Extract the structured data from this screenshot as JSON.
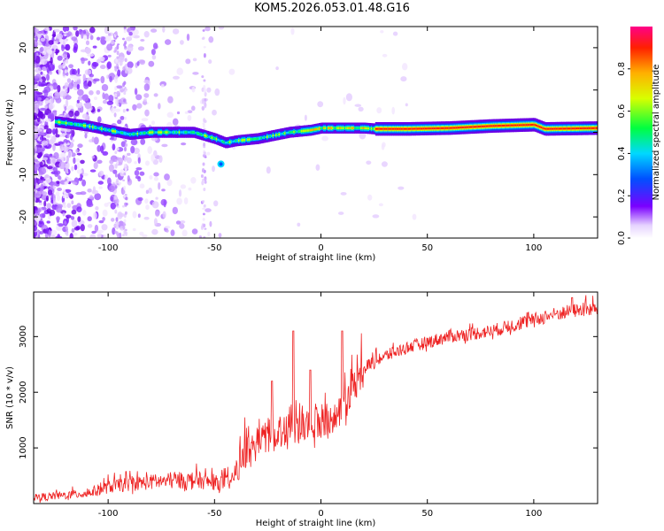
{
  "title": "KOM5.2026.053.01.48.G16",
  "chart_data": [
    {
      "type": "heatmap",
      "name": "spectrogram",
      "xlabel": "Height of straight line (km)",
      "ylabel": "Frequency (Hz)",
      "xlim": [
        -135,
        130
      ],
      "ylim": [
        -25,
        25
      ],
      "xticks": [
        -100,
        -50,
        0,
        50,
        100
      ],
      "yticks": [
        -20,
        -10,
        0,
        10,
        20
      ],
      "ridge": [
        {
          "x": -125,
          "y": 2.5
        },
        {
          "x": -110,
          "y": 1.5
        },
        {
          "x": -100,
          "y": 0.5
        },
        {
          "x": -90,
          "y": -0.5
        },
        {
          "x": -80,
          "y": 0
        },
        {
          "x": -70,
          "y": 0
        },
        {
          "x": -60,
          "y": 0
        },
        {
          "x": -50,
          "y": -1.5
        },
        {
          "x": -45,
          "y": -2.5
        },
        {
          "x": -40,
          "y": -2
        },
        {
          "x": -30,
          "y": -1.5
        },
        {
          "x": -25,
          "y": -1
        },
        {
          "x": -15,
          "y": 0
        },
        {
          "x": -5,
          "y": 0.5
        },
        {
          "x": 0,
          "y": 1
        },
        {
          "x": 10,
          "y": 1
        },
        {
          "x": 20,
          "y": 1
        },
        {
          "x": 25,
          "y": 0.8
        },
        {
          "x": 40,
          "y": 0.8
        },
        {
          "x": 60,
          "y": 1
        },
        {
          "x": 80,
          "y": 1.5
        },
        {
          "x": 100,
          "y": 1.8
        },
        {
          "x": 105,
          "y": 0.8
        },
        {
          "x": 130,
          "y": 1
        }
      ],
      "colorbar": {
        "label": "Normalized spectral amplitude",
        "range": [
          0.0,
          1.0
        ],
        "ticks": [
          "0.0",
          "0.2",
          "0.4",
          "0.6",
          "0.8"
        ],
        "tick_values": [
          0,
          0.2,
          0.4,
          0.6,
          0.8
        ]
      }
    },
    {
      "type": "line",
      "name": "snr",
      "xlabel": "Height of straight line (km)",
      "ylabel": "SNR (10 * v/v)",
      "xlim": [
        -135,
        130
      ],
      "ylim": [
        0,
        3800
      ],
      "xticks": [
        -100,
        -50,
        0,
        50,
        100
      ],
      "yticks": [
        1000,
        2000,
        3000
      ],
      "series": [
        {
          "name": "SNR",
          "color": "#ee2222",
          "trend": [
            {
              "x": -135,
              "y": 80
            },
            {
              "x": -120,
              "y": 120
            },
            {
              "x": -110,
              "y": 150
            },
            {
              "x": -100,
              "y": 250
            },
            {
              "x": -90,
              "y": 300
            },
            {
              "x": -80,
              "y": 330
            },
            {
              "x": -70,
              "y": 350
            },
            {
              "x": -60,
              "y": 360
            },
            {
              "x": -50,
              "y": 320
            },
            {
              "x": -42,
              "y": 330
            },
            {
              "x": -38,
              "y": 700
            },
            {
              "x": -30,
              "y": 1000
            },
            {
              "x": -20,
              "y": 1200
            },
            {
              "x": -10,
              "y": 1300
            },
            {
              "x": 0,
              "y": 1300
            },
            {
              "x": 8,
              "y": 1500
            },
            {
              "x": 15,
              "y": 2000
            },
            {
              "x": 22,
              "y": 2450
            },
            {
              "x": 30,
              "y": 2600
            },
            {
              "x": 40,
              "y": 2750
            },
            {
              "x": 50,
              "y": 2850
            },
            {
              "x": 60,
              "y": 2950
            },
            {
              "x": 70,
              "y": 3000
            },
            {
              "x": 80,
              "y": 3050
            },
            {
              "x": 90,
              "y": 3150
            },
            {
              "x": 100,
              "y": 3250
            },
            {
              "x": 110,
              "y": 3350
            },
            {
              "x": 120,
              "y": 3420
            },
            {
              "x": 130,
              "y": 3450
            }
          ],
          "peaks": [
            {
              "x": -13,
              "y": 3100
            },
            {
              "x": -5,
              "y": 2400
            },
            {
              "x": 10,
              "y": 3100
            },
            {
              "x": 118,
              "y": 3700
            },
            {
              "x": -23,
              "y": 2200
            }
          ]
        }
      ]
    }
  ]
}
